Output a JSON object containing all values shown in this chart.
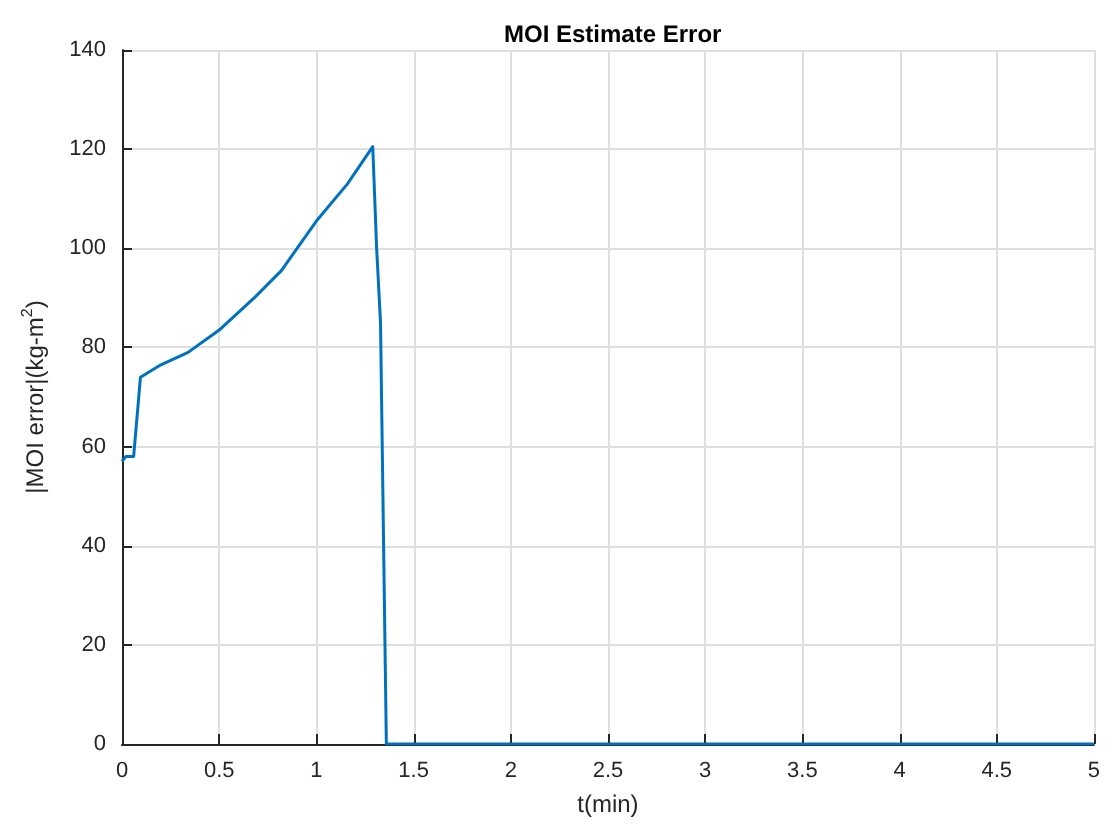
{
  "chart_data": {
    "type": "line",
    "title": "MOI Estimate Error",
    "xlabel": "t(min)",
    "ylabel": "|MOI error|(kg-m$^{2}$)",
    "x": [
      0,
      0.02,
      0.06,
      0.095,
      0.2,
      0.34,
      0.5,
      0.68,
      0.82,
      1.0,
      1.16,
      1.29,
      1.31,
      1.33,
      1.36,
      5
    ],
    "series": [
      {
        "color": "#0072bd",
        "values": [
          57,
          58,
          58,
          74,
          76.5,
          79,
          83.5,
          90,
          95.5,
          105.5,
          113,
          120.5,
          100,
          85,
          0,
          0
        ]
      }
    ],
    "xlim": [
      0,
      5
    ],
    "xticks": [
      0,
      0.5,
      1,
      1.5,
      2,
      2.5,
      3,
      3.5,
      4,
      4.5,
      5
    ],
    "ylim": [
      0,
      140
    ],
    "yticks": [
      0,
      20,
      40,
      60,
      80,
      100,
      120,
      140
    ],
    "grid": true,
    "marker": "none",
    "line_style": "solid"
  }
}
